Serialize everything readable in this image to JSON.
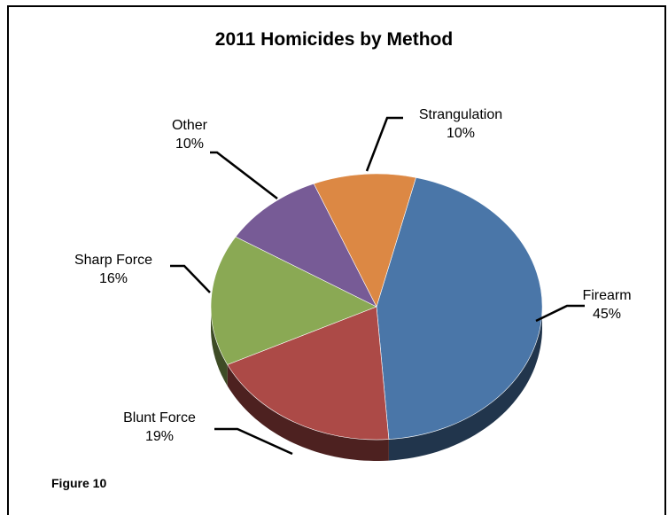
{
  "title": "2011 Homicides by Method",
  "figure_label": "Figure 10",
  "colors": {
    "Firearm": "#4a76a8",
    "Blunt Force": "#ac4a47",
    "Sharp Force": "#8aa954",
    "Other": "#775b96",
    "Strangulation": "#dc8844"
  },
  "chart_data": {
    "type": "pie",
    "title": "2011 Homicides by Method",
    "style": "3d",
    "slices": [
      {
        "label": "Firearm",
        "value": 45,
        "value_label": "45%"
      },
      {
        "label": "Blunt Force",
        "value": 19,
        "value_label": "19%"
      },
      {
        "label": "Sharp Force",
        "value": 16,
        "value_label": "16%"
      },
      {
        "label": "Other",
        "value": 10,
        "value_label": "10%"
      },
      {
        "label": "Strangulation",
        "value": 10,
        "value_label": "10%"
      }
    ]
  }
}
